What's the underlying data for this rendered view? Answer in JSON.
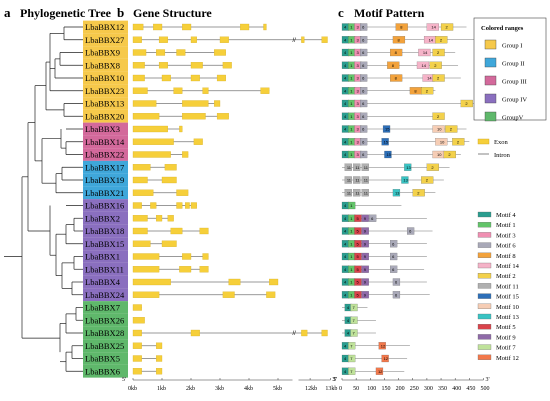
{
  "panels": {
    "a": {
      "letter": "a",
      "title": "Phylogenetic Tree"
    },
    "b": {
      "letter": "b",
      "title": "Gene Structure"
    },
    "c": {
      "letter": "c",
      "title": "Motif Pattern"
    }
  },
  "genes": [
    {
      "name": "LbaBBX12",
      "group": "I"
    },
    {
      "name": "LbaBBX27",
      "group": "I"
    },
    {
      "name": "LbaBBX9",
      "group": "I"
    },
    {
      "name": "LbaBBX8",
      "group": "I"
    },
    {
      "name": "LbaBBX10",
      "group": "I"
    },
    {
      "name": "LbaBBX23",
      "group": "I"
    },
    {
      "name": "LbaBBX13",
      "group": "I"
    },
    {
      "name": "LbaBBX20",
      "group": "I"
    },
    {
      "name": "LbaBBX3",
      "group": "III"
    },
    {
      "name": "LbaBBX14",
      "group": "III"
    },
    {
      "name": "LbaBBX22",
      "group": "III"
    },
    {
      "name": "LbaBBX17",
      "group": "II"
    },
    {
      "name": "LbaBBX19",
      "group": "II"
    },
    {
      "name": "LbaBBX21",
      "group": "II"
    },
    {
      "name": "LbaBBX16",
      "group": "IV"
    },
    {
      "name": "LbaBBX2",
      "group": "IV"
    },
    {
      "name": "LbaBBX18",
      "group": "IV"
    },
    {
      "name": "LbaBBX15",
      "group": "IV"
    },
    {
      "name": "LbaBBX1",
      "group": "IV"
    },
    {
      "name": "LbaBBX11",
      "group": "IV"
    },
    {
      "name": "LbaBBX4",
      "group": "IV"
    },
    {
      "name": "LbaBBX24",
      "group": "IV"
    },
    {
      "name": "LbaBBX7",
      "group": "V"
    },
    {
      "name": "LbaBBX26",
      "group": "V"
    },
    {
      "name": "LbaBBX28",
      "group": "V"
    },
    {
      "name": "LbaBBX25",
      "group": "V"
    },
    {
      "name": "LbaBBX5",
      "group": "V"
    },
    {
      "name": "LbaBBX6",
      "group": "V"
    }
  ],
  "group_colors": {
    "I": "#f6c94b",
    "II": "#3fa7da",
    "III": "#d3699b",
    "IV": "#8a6fbf",
    "V": "#5fb86b"
  },
  "colored_ranges": {
    "title": "Colored ranges",
    "items": [
      {
        "label": "Group I",
        "group": "I"
      },
      {
        "label": "Group II",
        "group": "II"
      },
      {
        "label": "Group III",
        "group": "III"
      },
      {
        "label": "Group IV",
        "group": "IV"
      },
      {
        "label": "GroupV",
        "group": "V"
      }
    ]
  },
  "structure_legend": {
    "exon": "Exon",
    "intron": "Intron"
  },
  "structure_axis": {
    "start_label": "5'",
    "end_label": "3'",
    "ticks": [
      "0kb",
      "1kb",
      "2kb",
      "3kb",
      "4kb",
      "5kb",
      "12kb",
      "13kb"
    ]
  },
  "motif_axis": {
    "start_label": "5'",
    "end_label": "3'",
    "ticks": [
      "0",
      "50",
      "100",
      "150",
      "200",
      "250",
      "300",
      "350",
      "400",
      "450",
      "500"
    ]
  },
  "motif_legend": [
    {
      "label": "Motif 4",
      "color": "#2a9d8f"
    },
    {
      "label": "Motif 1",
      "color": "#63c46a"
    },
    {
      "label": "Motif 3",
      "color": "#f08fb2"
    },
    {
      "label": "Motif 6",
      "color": "#a9a9b8"
    },
    {
      "label": "Motif 8",
      "color": "#f2a23c"
    },
    {
      "label": "Motif 14",
      "color": "#f5b3c8"
    },
    {
      "label": "Motif 2",
      "color": "#f3d14b"
    },
    {
      "label": "Motif 11",
      "color": "#b0b0b0"
    },
    {
      "label": "Motif 15",
      "color": "#2d6fb8"
    },
    {
      "label": "Motif 10",
      "color": "#f6cdb5"
    },
    {
      "label": "Motif 13",
      "color": "#39c3c3"
    },
    {
      "label": "Motif 5",
      "color": "#d9434b"
    },
    {
      "label": "Motif 9",
      "color": "#8f6aa8"
    },
    {
      "label": "Motif 7",
      "color": "#bfe29a"
    },
    {
      "label": "Motif 12",
      "color": "#f2784b"
    }
  ],
  "gene_structures": [
    [
      [
        0,
        0.35
      ],
      [
        0.7,
        1.0
      ],
      [
        1.7,
        2.0
      ],
      [
        3.7,
        4.0
      ],
      [
        4.5,
        4.6
      ]
    ],
    [
      [
        0,
        0.3
      ],
      [
        0.9,
        1.2
      ],
      [
        2.0,
        2.2
      ],
      [
        3.0,
        3.3
      ],
      [
        5.6,
        5.7
      ],
      [
        6.3,
        6.5
      ]
    ],
    [
      [
        0,
        0.45
      ],
      [
        0.8,
        1.1
      ],
      [
        1.5,
        1.8
      ],
      [
        2.8,
        3.2
      ]
    ],
    [
      [
        0,
        0.4
      ],
      [
        0.9,
        1.2
      ],
      [
        2.0,
        2.4
      ],
      [
        3.1,
        3.4
      ]
    ],
    [
      [
        0,
        0.4
      ],
      [
        1.0,
        1.3
      ],
      [
        2.0,
        2.3
      ],
      [
        2.9,
        3.2
      ]
    ],
    [
      [
        0,
        0.5
      ],
      [
        1.4,
        1.7
      ],
      [
        2.4,
        2.6
      ],
      [
        4.4,
        4.7
      ]
    ],
    [
      [
        0,
        0.8
      ],
      [
        1.7,
        2.6
      ],
      [
        2.8,
        3.0
      ]
    ],
    [
      [
        0,
        0.9
      ],
      [
        1.7,
        2.5
      ],
      [
        2.9,
        3.3
      ]
    ],
    [
      [
        0,
        1.2
      ],
      [
        1.6,
        1.7
      ]
    ],
    [
      [
        0,
        1.4
      ],
      [
        2.1,
        2.4
      ]
    ],
    [
      [
        0,
        1.3
      ],
      [
        1.7,
        1.9
      ]
    ],
    [
      [
        0,
        0.6
      ],
      [
        1.1,
        1.5
      ]
    ],
    [
      [
        0,
        0.5
      ],
      [
        1.0,
        1.5
      ]
    ],
    [
      [
        0,
        0.7
      ],
      [
        1.5,
        1.9
      ]
    ],
    [
      [
        0,
        0.3
      ],
      [
        0.6,
        0.8
      ],
      [
        1.5,
        1.7
      ],
      [
        1.8,
        1.95
      ],
      [
        2.0,
        2.2
      ]
    ],
    [
      [
        0,
        0.5
      ],
      [
        0.8,
        1.0
      ],
      [
        1.2,
        1.4
      ]
    ],
    [
      [
        0,
        0.5
      ],
      [
        1.3,
        1.7
      ],
      [
        2.3,
        2.6
      ]
    ],
    [
      [
        0,
        0.6
      ],
      [
        1.0,
        1.5
      ]
    ],
    [
      [
        0,
        0.9
      ],
      [
        1.7,
        2.0
      ],
      [
        2.4,
        2.6
      ]
    ],
    [
      [
        0,
        0.9
      ],
      [
        1.6,
        2.0
      ],
      [
        2.3,
        2.6
      ]
    ],
    [
      [
        0,
        1.3
      ],
      [
        3.3,
        3.7
      ],
      [
        4.7,
        5.0
      ]
    ],
    [
      [
        0,
        0.9
      ],
      [
        3.1,
        3.5
      ],
      [
        4.6,
        4.9
      ]
    ],
    [
      [
        0,
        0.3
      ]
    ],
    [
      [
        0,
        0.4
      ]
    ],
    [
      [
        0,
        0.3
      ],
      [
        2.0,
        2.3
      ],
      [
        5.6,
        5.8
      ],
      [
        6.3,
        6.5
      ]
    ],
    [
      [
        0,
        0.3
      ],
      [
        0.8,
        1.0
      ]
    ],
    [
      [
        0,
        0.3
      ],
      [
        0.8,
        1.0
      ]
    ],
    [
      [
        0,
        0.3
      ],
      [
        0.8,
        1.0
      ]
    ]
  ],
  "motif_rows": [
    {
      "len": 440,
      "motifs": [
        [
          4,
          0
        ],
        [
          1,
          22
        ],
        [
          3,
          44
        ],
        [
          6,
          64
        ],
        [
          8,
          190
        ],
        [
          14,
          300
        ],
        [
          2,
          350
        ]
      ]
    },
    {
      "len": 470,
      "motifs": [
        [
          4,
          0
        ],
        [
          1,
          22
        ],
        [
          3,
          44
        ],
        [
          6,
          64
        ],
        [
          8,
          180
        ],
        [
          14,
          290
        ],
        [
          2,
          330
        ]
      ]
    },
    {
      "len": 400,
      "motifs": [
        [
          4,
          0
        ],
        [
          1,
          22
        ],
        [
          3,
          44
        ],
        [
          6,
          64
        ],
        [
          8,
          170
        ],
        [
          14,
          270
        ],
        [
          2,
          320
        ]
      ]
    },
    {
      "len": 410,
      "motifs": [
        [
          4,
          0
        ],
        [
          1,
          22
        ],
        [
          3,
          44
        ],
        [
          6,
          64
        ],
        [
          8,
          160
        ],
        [
          14,
          265
        ],
        [
          2,
          310
        ]
      ]
    },
    {
      "len": 420,
      "motifs": [
        [
          4,
          0
        ],
        [
          1,
          22
        ],
        [
          3,
          44
        ],
        [
          6,
          64
        ],
        [
          8,
          170
        ],
        [
          14,
          285
        ],
        [
          2,
          320
        ]
      ]
    },
    {
      "len": 330,
      "motifs": [
        [
          4,
          0
        ],
        [
          1,
          22
        ],
        [
          3,
          44
        ],
        [
          6,
          64
        ],
        [
          8,
          240
        ],
        [
          2,
          280
        ]
      ]
    },
    {
      "len": 480,
      "motifs": [
        [
          4,
          0
        ],
        [
          1,
          22
        ],
        [
          3,
          44
        ],
        [
          6,
          64
        ],
        [
          2,
          420
        ]
      ]
    },
    {
      "len": 360,
      "motifs": [
        [
          4,
          0
        ],
        [
          1,
          22
        ],
        [
          3,
          44
        ],
        [
          6,
          64
        ],
        [
          2,
          320
        ]
      ]
    },
    {
      "len": 440,
      "motifs": [
        [
          4,
          0
        ],
        [
          1,
          22
        ],
        [
          3,
          44
        ],
        [
          6,
          64
        ],
        [
          15,
          145
        ],
        [
          10,
          320
        ],
        [
          2,
          365
        ]
      ]
    },
    {
      "len": 450,
      "motifs": [
        [
          4,
          0
        ],
        [
          1,
          22
        ],
        [
          3,
          44
        ],
        [
          6,
          64
        ],
        [
          15,
          140
        ],
        [
          10,
          330
        ],
        [
          2,
          390
        ]
      ]
    },
    {
      "len": 420,
      "motifs": [
        [
          4,
          0
        ],
        [
          1,
          22
        ],
        [
          3,
          44
        ],
        [
          6,
          64
        ],
        [
          15,
          150
        ],
        [
          10,
          320
        ],
        [
          2,
          360
        ]
      ]
    },
    {
      "len": 380,
      "motifs": [
        [
          11,
          10
        ],
        [
          11,
          40
        ],
        [
          11,
          70
        ],
        [
          13,
          220
        ],
        [
          2,
          300
        ]
      ]
    },
    {
      "len": 360,
      "motifs": [
        [
          11,
          10
        ],
        [
          11,
          40
        ],
        [
          11,
          70
        ],
        [
          13,
          210
        ],
        [
          2,
          280
        ]
      ]
    },
    {
      "len": 330,
      "motifs": [
        [
          11,
          10
        ],
        [
          11,
          40
        ],
        [
          11,
          70
        ],
        [
          13,
          180
        ],
        [
          2,
          250
        ]
      ]
    },
    {
      "len": 210,
      "motifs": [
        [
          4,
          0
        ],
        [
          1,
          22
        ]
      ]
    },
    {
      "len": 300,
      "motifs": [
        [
          4,
          0
        ],
        [
          1,
          22
        ],
        [
          5,
          44
        ],
        [
          9,
          70
        ],
        [
          6,
          96
        ]
      ]
    },
    {
      "len": 320,
      "motifs": [
        [
          4,
          0
        ],
        [
          1,
          22
        ],
        [
          5,
          44
        ],
        [
          9,
          70
        ],
        [
          6,
          230
        ]
      ]
    },
    {
      "len": 300,
      "motifs": [
        [
          4,
          0
        ],
        [
          1,
          22
        ],
        [
          5,
          44
        ],
        [
          9,
          70
        ],
        [
          6,
          170
        ]
      ]
    },
    {
      "len": 300,
      "motifs": [
        [
          4,
          0
        ],
        [
          1,
          22
        ],
        [
          5,
          44
        ],
        [
          9,
          70
        ],
        [
          6,
          170
        ]
      ]
    },
    {
      "len": 290,
      "motifs": [
        [
          4,
          0
        ],
        [
          1,
          22
        ],
        [
          5,
          44
        ],
        [
          9,
          70
        ],
        [
          6,
          170
        ]
      ]
    },
    {
      "len": 300,
      "motifs": [
        [
          4,
          0
        ],
        [
          1,
          22
        ],
        [
          5,
          44
        ],
        [
          9,
          70
        ],
        [
          6,
          180
        ]
      ]
    },
    {
      "len": 310,
      "motifs": [
        [
          4,
          0
        ],
        [
          1,
          22
        ],
        [
          5,
          44
        ],
        [
          9,
          70
        ],
        [
          6,
          180
        ]
      ]
    },
    {
      "len": 90,
      "motifs": [
        [
          4,
          10
        ],
        [
          7,
          30
        ]
      ]
    },
    {
      "len": 120,
      "motifs": [
        [
          4,
          10
        ],
        [
          7,
          30
        ]
      ]
    },
    {
      "len": 120,
      "motifs": [
        [
          4,
          10
        ],
        [
          7,
          30
        ]
      ]
    },
    {
      "len": 240,
      "motifs": [
        [
          4,
          0
        ],
        [
          7,
          22
        ],
        [
          12,
          130
        ]
      ]
    },
    {
      "len": 230,
      "motifs": [
        [
          4,
          0
        ],
        [
          7,
          22
        ],
        [
          12,
          140
        ]
      ]
    },
    {
      "len": 220,
      "motifs": [
        [
          4,
          0
        ],
        [
          7,
          22
        ],
        [
          12,
          120
        ]
      ]
    }
  ]
}
